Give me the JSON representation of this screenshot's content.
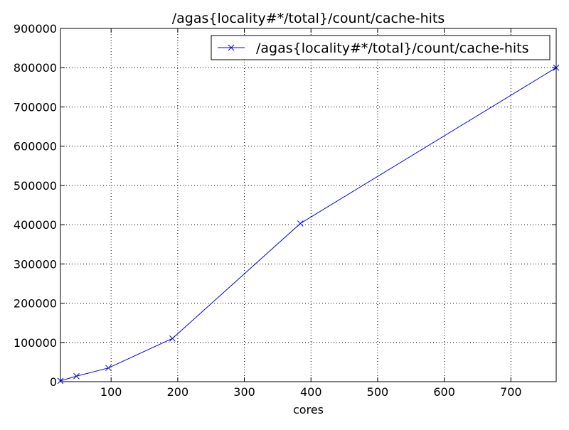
{
  "chart_data": {
    "type": "line",
    "title": "/agas{locality#*/total}/count/cache-hits",
    "xlabel": "cores",
    "ylabel": "",
    "xlim": [
      24,
      768
    ],
    "ylim": [
      0,
      900000
    ],
    "xticks": [
      100,
      200,
      300,
      400,
      500,
      600,
      700
    ],
    "xtick_labels": [
      "100",
      "200",
      "300",
      "400",
      "500",
      "600",
      "700"
    ],
    "yticks": [
      0,
      100000,
      200000,
      300000,
      400000,
      500000,
      600000,
      700000,
      800000,
      900000
    ],
    "ytick_labels": [
      "0",
      "100000",
      "200000",
      "300000",
      "400000",
      "500000",
      "600000",
      "700000",
      "800000",
      "900000"
    ],
    "grid": true,
    "legend_position": "top-right",
    "series": [
      {
        "name": "/agas{locality#*/total}/count/cache-hits",
        "color": "#0000ff",
        "marker": "x",
        "x": [
          24,
          48,
          96,
          192,
          384,
          768
        ],
        "y": [
          2000,
          14000,
          35000,
          110000,
          403000,
          800000
        ]
      }
    ]
  }
}
